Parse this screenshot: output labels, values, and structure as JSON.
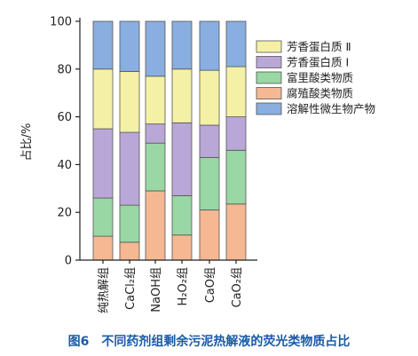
{
  "figure_caption": "图6　不同药剂组剩余污泥热解液的荧光类物质占比",
  "colors": {
    "protein_II": "#f4f1a6",
    "protein_I": "#b9a7d8",
    "fulvic": "#99d7a4",
    "humic": "#f5b892",
    "microbial": "#89aee0"
  },
  "chart_data": {
    "type": "bar",
    "stacked": true,
    "ylabel": "占比/%",
    "xlabel": "",
    "ylim": [
      0,
      100
    ],
    "yticks": [
      0,
      20,
      40,
      60,
      80,
      100
    ],
    "legend_position": "top-right",
    "categories": [
      "纯热解组",
      "CaCl₂组",
      "NaOH组",
      "H₂O₂组",
      "CaO组",
      "CaO₂组"
    ],
    "series": [
      {
        "name": "腐殖酸类物质",
        "color": "#f5b892",
        "values": [
          10,
          7.5,
          29,
          10.5,
          21,
          23.5
        ]
      },
      {
        "name": "富里酸类物质",
        "color": "#99d7a4",
        "values": [
          16,
          15.5,
          20,
          16.5,
          22,
          22.5
        ]
      },
      {
        "name": "芳香蛋白质 Ⅰ",
        "color": "#b9a7d8",
        "values": [
          29,
          30.5,
          8,
          30.5,
          13.5,
          14
        ]
      },
      {
        "name": "芳香蛋白质 Ⅱ",
        "color": "#f4f1a6",
        "values": [
          25,
          25.5,
          20,
          22.5,
          23,
          21
        ]
      },
      {
        "name": "溶解性微生物产物",
        "color": "#89aee0",
        "values": [
          20,
          21,
          23,
          20,
          20.5,
          19
        ]
      }
    ],
    "legend_order": [
      "芳香蛋白质 Ⅱ",
      "芳香蛋白质 Ⅰ",
      "富里酸类物质",
      "腐殖酸类物质",
      "溶解性微生物产物"
    ]
  }
}
